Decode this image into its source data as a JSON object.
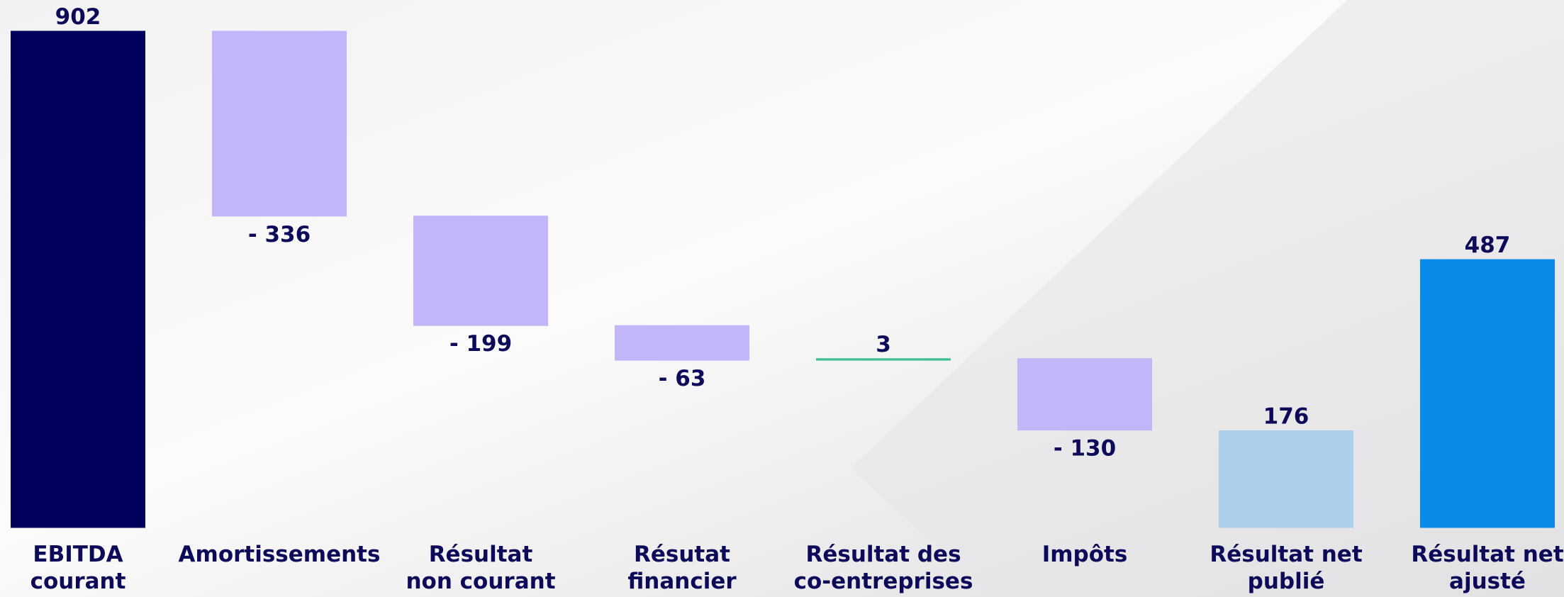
{
  "chart_data": {
    "type": "waterfall",
    "categories": [
      [
        "EBITDA",
        "courant"
      ],
      [
        "Amortissements"
      ],
      [
        "Résultat",
        "non courant"
      ],
      [
        "Résutat",
        "financier"
      ],
      [
        "Résultat des",
        "co-entreprises"
      ],
      [
        "Impôts"
      ],
      [
        "Résultat net",
        "publié"
      ],
      [
        "Résultat net",
        "ajusté"
      ]
    ],
    "values": [
      902,
      -336,
      -199,
      -63,
      3,
      -130,
      176,
      487
    ],
    "value_labels": [
      "902",
      "- 336",
      "- 199",
      "- 63",
      "3",
      "- 130",
      "176",
      "487"
    ],
    "measure": [
      "total",
      "relative",
      "relative",
      "relative",
      "relative",
      "relative",
      "total",
      "total"
    ],
    "colors": [
      "#00005c",
      "#c2b5fa",
      "#c2b5fa",
      "#c2b5fa",
      "#3cbf95",
      "#c2b5fa",
      "#acd0ec",
      "#0a8bea"
    ]
  }
}
